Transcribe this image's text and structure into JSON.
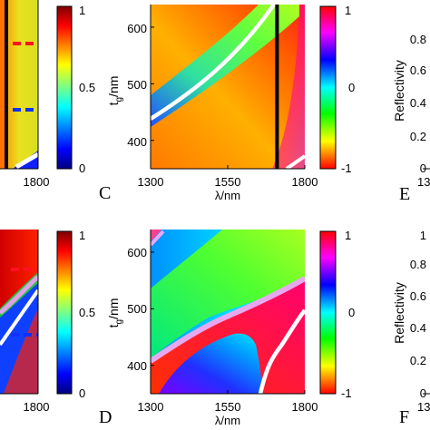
{
  "chart_data": [
    {
      "type": "heatmap",
      "title": "",
      "xlabel": "",
      "ylabel": "",
      "x_ticks": [
        "1800"
      ],
      "colorbar": {
        "ticks": [
          "1",
          "0.5",
          "0"
        ],
        "range": [
          0,
          1
        ],
        "colormap": "jet"
      }
    },
    {
      "type": "heatmap",
      "panel": "C",
      "title": "",
      "xlabel": "λ/nm",
      "ylabel_main": "t",
      "ylabel_sub": "g",
      "ylabel_unit": "/nm",
      "x_ticks": [
        "1300",
        "1550",
        "1800"
      ],
      "y_ticks": [
        "600",
        "500",
        "400"
      ],
      "xlim": [
        1300,
        1800
      ],
      "ylim": [
        350,
        640
      ],
      "marker_line_x": 1710,
      "colorbar": {
        "ticks": [
          "1",
          "0",
          "-1"
        ],
        "range": [
          -1,
          1
        ],
        "colormap": "hsv"
      }
    },
    {
      "type": "line",
      "panel": "E",
      "ylabel": "Reflectivity",
      "y_ticks": [
        "0.8",
        "0.6",
        "0.4",
        "0.2",
        "0"
      ],
      "x_tick_partial": "13"
    },
    {
      "type": "heatmap",
      "title": "",
      "xlabel": "",
      "ylabel": "",
      "x_ticks": [
        "1800"
      ],
      "colorbar": {
        "ticks": [
          "1",
          "0.5",
          "0"
        ],
        "range": [
          0,
          1
        ],
        "colormap": "jet"
      }
    },
    {
      "type": "heatmap",
      "panel": "D",
      "title": "",
      "xlabel": "λ/nm",
      "ylabel_main": "t",
      "ylabel_sub": "g",
      "ylabel_unit": "/nm",
      "x_ticks": [
        "1300",
        "1550",
        "1800"
      ],
      "y_ticks": [
        "600",
        "500",
        "400"
      ],
      "xlim": [
        1300,
        1800
      ],
      "ylim": [
        350,
        640
      ],
      "colorbar": {
        "ticks": [
          "1",
          "0",
          "-1"
        ],
        "range": [
          -1,
          1
        ],
        "colormap": "hsv"
      }
    },
    {
      "type": "line",
      "panel": "F",
      "ylabel": "Reflectivity",
      "y_ticks": [
        "1",
        "0.8",
        "0.6",
        "0.4",
        "0.2",
        "0"
      ],
      "x_tick_partial": "13"
    }
  ]
}
